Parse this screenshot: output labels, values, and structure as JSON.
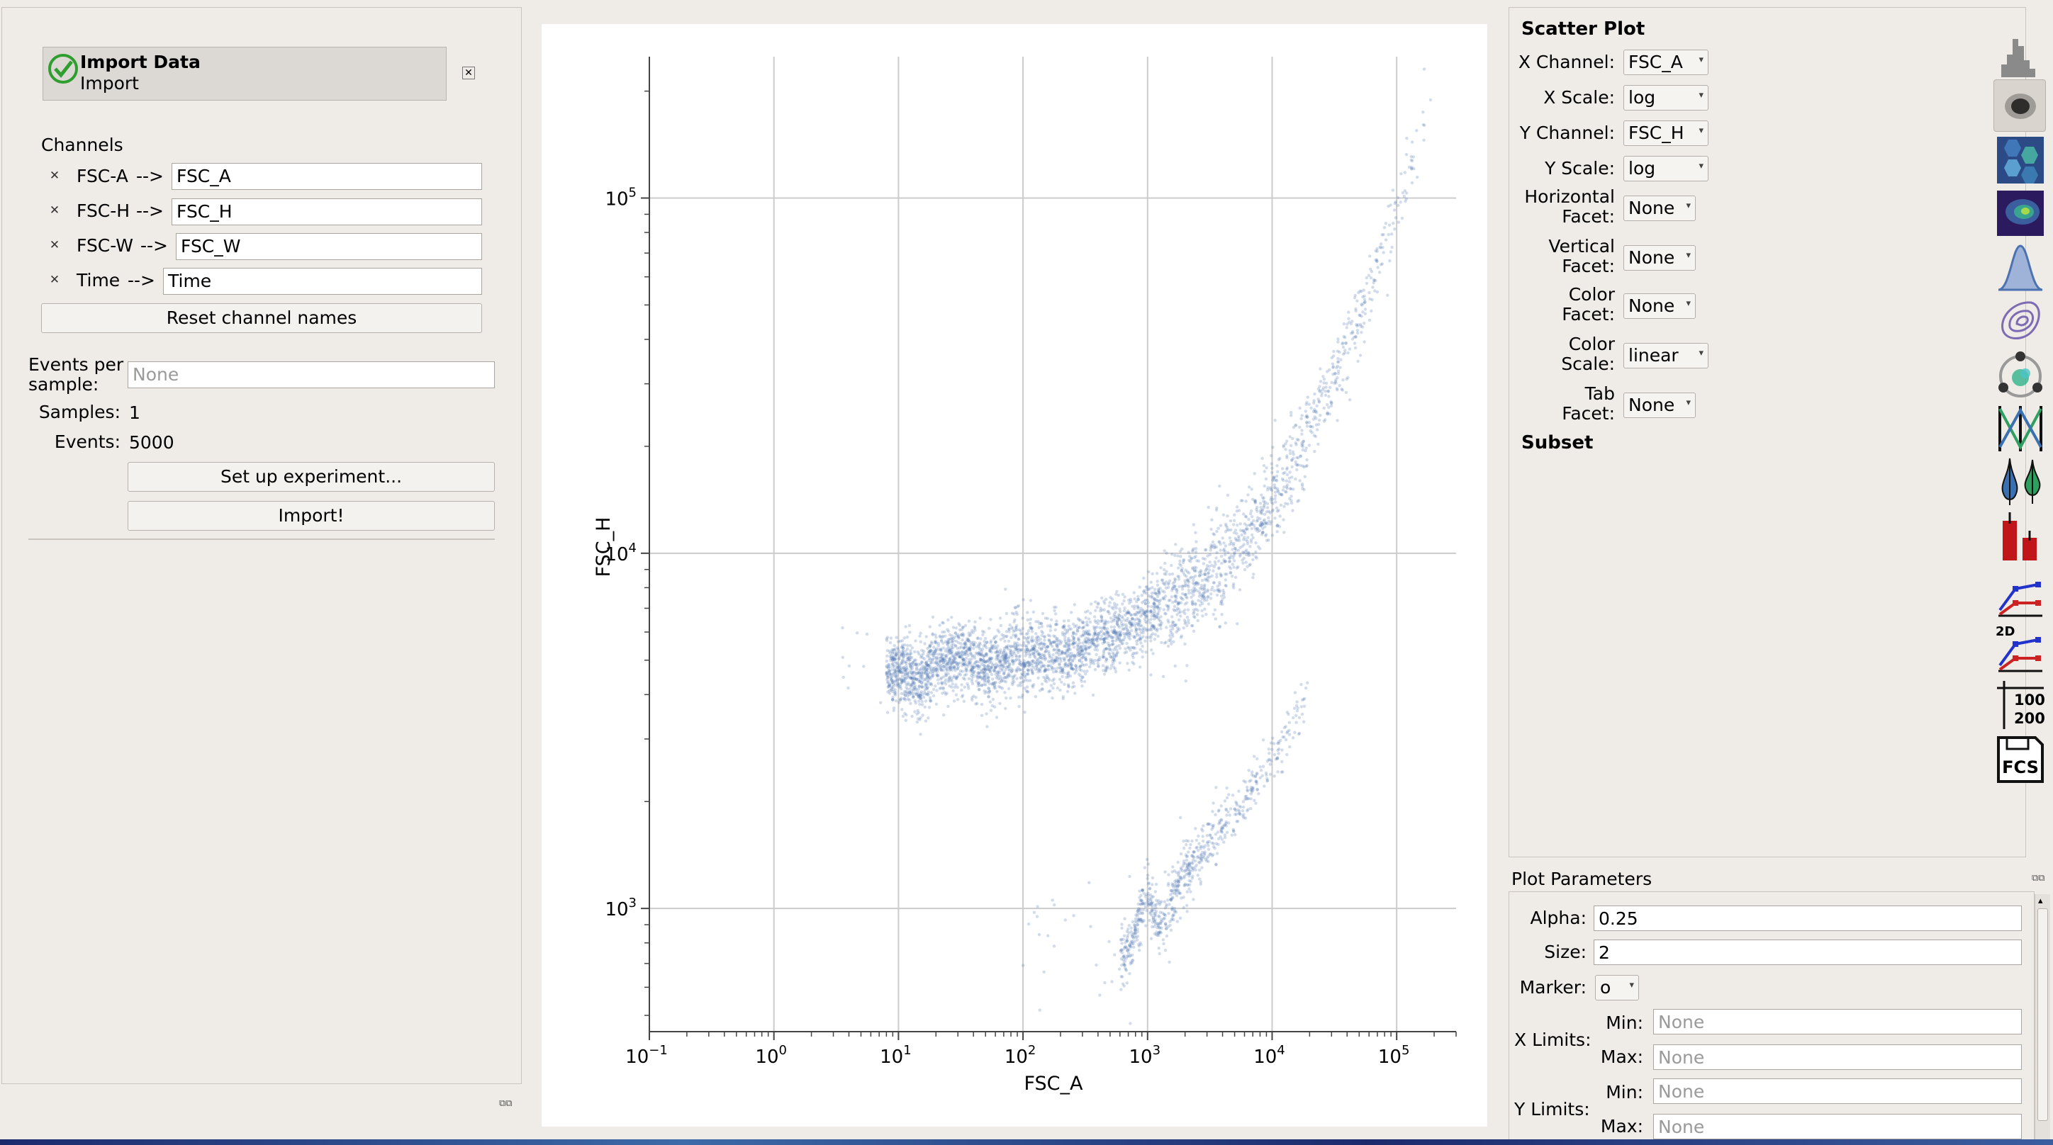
{
  "import_panel": {
    "op_title": "Import Data",
    "op_subtitle": "Import",
    "channels_label": "Channels",
    "channels": [
      {
        "source": "FSC-A",
        "arrow": "-->",
        "name": "FSC_A"
      },
      {
        "source": "FSC-H",
        "arrow": "-->",
        "name": "FSC_H"
      },
      {
        "source": "FSC-W",
        "arrow": "-->",
        "name": "FSC_W"
      },
      {
        "source": "Time",
        "arrow": "-->",
        "name": "Time"
      }
    ],
    "reset_label": "Reset channel names",
    "events_per_sample_label_1": "Events per",
    "events_per_sample_label_2": "sample:",
    "events_per_sample_placeholder": "None",
    "samples_label": "Samples:",
    "samples_value": "1",
    "events_label": "Events:",
    "events_value": "5000",
    "setup_label": "Set up experiment...",
    "import_label": "Import!"
  },
  "view_properties": {
    "title": "Scatter Plot",
    "rows": [
      {
        "label": [
          "X Channel:"
        ],
        "value": "FSC_A"
      },
      {
        "label": [
          "X Scale:"
        ],
        "value": "log"
      },
      {
        "label": [
          "Y Channel:"
        ],
        "value": "FSC_H"
      },
      {
        "label": [
          "Y Scale:"
        ],
        "value": "log"
      },
      {
        "label": [
          "Horizontal",
          "Facet:"
        ],
        "value": "None"
      },
      {
        "label": [
          "Vertical",
          "Facet:"
        ],
        "value": "None"
      },
      {
        "label": [
          "Color",
          "Facet:"
        ],
        "value": "None"
      },
      {
        "label": [
          "Color",
          "Scale:"
        ],
        "value": "linear"
      },
      {
        "label": [
          "Tab",
          "Facet:"
        ],
        "value": "None"
      }
    ],
    "subset_label": "Subset"
  },
  "plot_params": {
    "title": "Plot Parameters",
    "alpha_label": "Alpha:",
    "alpha_value": "0.25",
    "size_label": "Size:",
    "size_value": "2",
    "marker_label": "Marker:",
    "marker_value": "o",
    "xlimits_label": "X Limits:",
    "ylimits_label": "Y Limits:",
    "min_label": "Min:",
    "max_label": "Max:",
    "limit_placeholder": "None"
  },
  "toolbar": {
    "tools": [
      "histogram-icon",
      "scatterplot-icon",
      "hexbin-icon",
      "density-icon",
      "kde-icon",
      "contour-icon",
      "radviz-icon",
      "parallel-coords-icon",
      "violin-icon",
      "bar-chart-icon",
      "stats-1d-icon",
      "stats-2d-icon",
      "table-icon",
      "fcs-export-icon"
    ],
    "label_2d": "2D",
    "table_values": [
      "100",
      "200"
    ],
    "fcs_label": "FCS"
  },
  "colors": {
    "point": "#4c72b0",
    "accent_green": "#2e9e2e",
    "purple": "#7d6bb3"
  },
  "chart_data": {
    "type": "scatter",
    "xlabel": "FSC_A",
    "ylabel": "FSC_H",
    "xscale": "log",
    "yscale": "log",
    "xlim": [
      0.1,
      300000
    ],
    "ylim": [
      450,
      250000
    ],
    "xticks": [
      {
        "base": "10",
        "exp": "−1"
      },
      {
        "base": "10",
        "exp": "0"
      },
      {
        "base": "10",
        "exp": "1"
      },
      {
        "base": "10",
        "exp": "2"
      },
      {
        "base": "10",
        "exp": "3"
      },
      {
        "base": "10",
        "exp": "4"
      },
      {
        "base": "10",
        "exp": "5"
      }
    ],
    "yticks": [
      {
        "base": "10",
        "exp": "3"
      },
      {
        "base": "10",
        "exp": "4"
      },
      {
        "base": "10",
        "exp": "5"
      }
    ],
    "grid": true,
    "alpha": 0.25,
    "marker_size": 2,
    "n_events": 5000,
    "series": [
      {
        "x": [
          3,
          8,
          10,
          14,
          20,
          30,
          40,
          55,
          70,
          80,
          90,
          100,
          120,
          150,
          180,
          220,
          260,
          300,
          350,
          400,
          500,
          600,
          700,
          800,
          900,
          1000,
          1200,
          1500,
          1800,
          2200,
          2600,
          3000,
          3500,
          4000,
          5000,
          6000,
          7000,
          8000,
          9000,
          10000,
          12000,
          14000,
          16000,
          18000,
          20000,
          25000,
          30000,
          35000,
          40000,
          50000,
          60000,
          70000,
          80000,
          100000,
          120000,
          150000,
          200000
        ],
        "y": [
          5200,
          4500,
          4800,
          4300,
          4900,
          5100,
          5000,
          4700,
          5100,
          5200,
          5300,
          4900,
          5200,
          5100,
          5300,
          5200,
          5300,
          5400,
          5600,
          5700,
          5800,
          6000,
          6200,
          6100,
          6400,
          6600,
          6800,
          7000,
          7300,
          7700,
          8100,
          8600,
          9000,
          9500,
          10300,
          11000,
          11800,
          12500,
          13200,
          14000,
          15500,
          17000,
          18700,
          20500,
          22000,
          26000,
          30000,
          34000,
          38000,
          46000,
          55000,
          65000,
          75000,
          95000,
          115000,
          145000,
          220000
        ]
      },
      {
        "x": [
          100,
          300,
          500,
          700,
          900,
          1000,
          1200,
          1500,
          1800,
          2000,
          2500,
          3000,
          3500,
          4000,
          5000,
          6000,
          7000,
          8000,
          9000,
          10000,
          12000,
          14000,
          16000,
          18000,
          20000
        ],
        "y": [
          800,
          900,
          700,
          750,
          1000,
          1100,
          900,
          1000,
          1150,
          1250,
          1350,
          1450,
          1600,
          1750,
          1900,
          2050,
          2200,
          2400,
          2550,
          2700,
          2900,
          3200,
          3500,
          3800,
          4200
        ]
      }
    ]
  }
}
